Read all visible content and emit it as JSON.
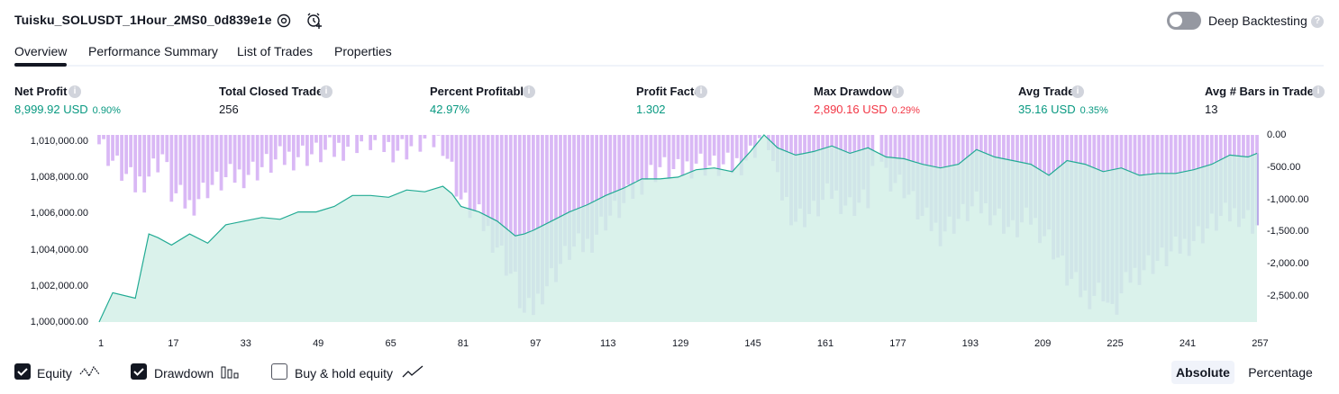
{
  "header": {
    "title": "Tuisku_SOLUSDT_1Hour_2MS0_0d839e1e",
    "deep_backtesting_label": "Deep Backtesting",
    "deep_backtesting_enabled": false
  },
  "tabs": [
    {
      "label": "Overview",
      "active": true
    },
    {
      "label": "Performance Summary",
      "active": false
    },
    {
      "label": "List of Trades",
      "active": false
    },
    {
      "label": "Properties",
      "active": false
    }
  ],
  "metrics": [
    {
      "label": "Net Profit",
      "value": "8,999.92 USD",
      "pct": "0.90%",
      "color": "#089981"
    },
    {
      "label": "Total Closed Trades",
      "value": "256",
      "pct": "",
      "color": "#131722"
    },
    {
      "label": "Percent Profitable",
      "value": "42.97%",
      "pct": "",
      "color": "#089981"
    },
    {
      "label": "Profit Factor",
      "value": "1.302",
      "pct": "",
      "color": "#089981"
    },
    {
      "label": "Max Drawdown",
      "value": "2,890.16 USD",
      "pct": "0.29%",
      "color": "#f23645"
    },
    {
      "label": "Avg Trade",
      "value": "35.16 USD",
      "pct": "0.35%",
      "color": "#089981"
    },
    {
      "label": "Avg # Bars in Trades",
      "value": "13",
      "pct": "",
      "color": "#131722"
    }
  ],
  "chart": {
    "left_axis": [
      "1,010,000.00",
      "1,008,000.00",
      "1,006,000.00",
      "1,004,000.00",
      "1,002,000.00",
      "1,000,000.00"
    ],
    "right_axis": [
      "0.00",
      "-500.00",
      "-1,000.00",
      "-1,500.00",
      "-2,000.00",
      "-2,500.00"
    ],
    "x_ticks": [
      "1",
      "17",
      "33",
      "49",
      "65",
      "81",
      "97",
      "113",
      "129",
      "145",
      "161",
      "177",
      "193",
      "209",
      "225",
      "241",
      "257"
    ],
    "equity_color": "#22ab94",
    "equity_fill": "#d4f0e8",
    "drawdown_color": "#d9b8f5",
    "overlap_color": "#b8a9e8"
  },
  "chart_data": {
    "type": "area",
    "x_range": [
      1,
      257
    ],
    "equity": {
      "name": "Equity",
      "ylim": [
        1000000,
        1010200
      ],
      "x": [
        1,
        4,
        9,
        12,
        14,
        17,
        21,
        25,
        29,
        33,
        37,
        41,
        45,
        49,
        53,
        57,
        61,
        65,
        69,
        73,
        77,
        79,
        81,
        85,
        89,
        91,
        93,
        95,
        97,
        101,
        105,
        109,
        113,
        117,
        121,
        125,
        129,
        133,
        137,
        141,
        145,
        148,
        151,
        155,
        159,
        163,
        167,
        171,
        175,
        179,
        183,
        187,
        191,
        195,
        199,
        203,
        207,
        211,
        215,
        219,
        223,
        227,
        231,
        235,
        239,
        243,
        247,
        251,
        255,
        257
      ],
      "y": [
        1000000,
        1001600,
        1001300,
        1004800,
        1004600,
        1004200,
        1004800,
        1004300,
        1005300,
        1005500,
        1005700,
        1005600,
        1006000,
        1006000,
        1006300,
        1006900,
        1006900,
        1006800,
        1007200,
        1007100,
        1007400,
        1007000,
        1006300,
        1006000,
        1005500,
        1005100,
        1004700,
        1004800,
        1005000,
        1005500,
        1006000,
        1006400,
        1006900,
        1007300,
        1007800,
        1007800,
        1007900,
        1008300,
        1008400,
        1008200,
        1009300,
        1010200,
        1009500,
        1009100,
        1009300,
        1009600,
        1009200,
        1009500,
        1009000,
        1008900,
        1008600,
        1008400,
        1008600,
        1009400,
        1009000,
        1008800,
        1008600,
        1008000,
        1008800,
        1008600,
        1008200,
        1008400,
        1008000,
        1008100,
        1008100,
        1008300,
        1008600,
        1009100,
        1009000,
        1009200
      ]
    },
    "drawdown": {
      "name": "Drawdown",
      "ylim": [
        -2900,
        0
      ],
      "x": [
        1,
        5,
        9,
        12,
        15,
        17,
        21,
        25,
        29,
        33,
        37,
        41,
        45,
        49,
        53,
        57,
        61,
        65,
        69,
        73,
        77,
        81,
        85,
        89,
        93,
        95,
        97,
        99,
        101,
        105,
        109,
        113,
        117,
        121,
        125,
        129,
        133,
        137,
        141,
        145,
        147,
        149,
        151,
        155,
        159,
        163,
        167,
        171,
        173,
        175,
        179,
        183,
        187,
        191,
        195,
        199,
        203,
        207,
        211,
        215,
        219,
        223,
        225,
        229,
        233,
        237,
        241,
        245,
        249,
        253,
        257
      ],
      "y": [
        -100,
        -500,
        -800,
        -600,
        -300,
        -900,
        -1100,
        -800,
        -700,
        -600,
        -500,
        -400,
        -300,
        -300,
        -250,
        -100,
        -100,
        -200,
        -200,
        -100,
        -100,
        -1000,
        -1300,
        -1700,
        -2300,
        -2800,
        -2700,
        -2400,
        -2200,
        -1800,
        -1700,
        -1300,
        -1100,
        -700,
        -500,
        -600,
        -400,
        -500,
        -500,
        -300,
        -50,
        -100,
        -800,
        -1300,
        -1200,
        -900,
        -1100,
        -1000,
        -50,
        -600,
        -800,
        -1300,
        -1500,
        -1300,
        -1100,
        -1200,
        -1500,
        -1300,
        -1600,
        -2200,
        -2500,
        -2400,
        -2800,
        -2200,
        -2000,
        -1900,
        -1700,
        -1500,
        -1300,
        -1200,
        -1400
      ]
    }
  },
  "legend": [
    {
      "label": "Equity",
      "checked": true
    },
    {
      "label": "Drawdown",
      "checked": true
    },
    {
      "label": "Buy & hold equity",
      "checked": false
    }
  ],
  "view_mode": {
    "absolute": "Absolute",
    "percentage": "Percentage",
    "selected": "Absolute"
  }
}
